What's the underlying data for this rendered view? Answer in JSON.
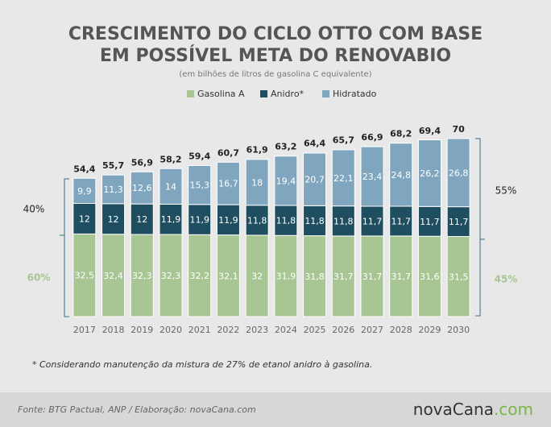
{
  "chart_data": {
    "type": "stacked_bar",
    "title": [
      "CRESCIMENTO DO CICLO OTTO COM BASE",
      "EM POSSÍVEL META DO RENOVABIO"
    ],
    "subtitle": "(em bilhões de litros de gasolina C equivalente)",
    "categories": [
      "2017",
      "2018",
      "2019",
      "2020",
      "2021",
      "2022",
      "2023",
      "2024",
      "2025",
      "2026",
      "2027",
      "2028",
      "2029",
      "2030"
    ],
    "series": [
      {
        "name": "Gasolina A",
        "color": "#a8c594",
        "values": [
          32.5,
          32.4,
          32.3,
          32.3,
          32.2,
          32.1,
          32,
          31.9,
          31.8,
          31.7,
          31.7,
          31.7,
          31.6,
          31.5
        ],
        "value_labels": [
          "32,5",
          "32,4",
          "32,3",
          "32,3",
          "32,2",
          "32,1",
          "32",
          "31,9",
          "31,8",
          "31,7",
          "31,7",
          "31,7",
          "31,6",
          "31,5"
        ]
      },
      {
        "name": "Anidro*",
        "color": "#1f4e60",
        "values": [
          12,
          12,
          12,
          11.9,
          11.9,
          11.9,
          11.8,
          11.8,
          11.8,
          11.8,
          11.7,
          11.7,
          11.7,
          11.7
        ],
        "value_labels": [
          "12",
          "12",
          "12",
          "11,9",
          "11,9",
          "11,9",
          "11,8",
          "11,8",
          "11,8",
          "11,8",
          "11,7",
          "11,7",
          "11,7",
          "11,7"
        ]
      },
      {
        "name": "Hidratado",
        "color": "#7fa6be",
        "values": [
          9.9,
          11.3,
          12.6,
          14,
          15.3,
          16.7,
          18,
          19.4,
          20.7,
          22.1,
          23.4,
          24.8,
          26.2,
          26.8
        ],
        "value_labels": [
          "9,9",
          "11,3",
          "12,6",
          "14",
          "15,3",
          "16,7",
          "18",
          "19,4",
          "20,7",
          "22,1",
          "23,4",
          "24,8",
          "26,2",
          "26,8"
        ]
      }
    ],
    "totals": {
      "values": [
        54.4,
        55.7,
        56.9,
        58.2,
        59.4,
        60.7,
        61.9,
        63.2,
        64.4,
        65.7,
        66.9,
        68.2,
        69.4,
        70
      ],
      "value_labels": [
        "54,4",
        "55,7",
        "56,9",
        "58,2",
        "59,4",
        "60,7",
        "61,9",
        "63,2",
        "64,4",
        "65,7",
        "66,9",
        "68,2",
        "69,4",
        "70"
      ]
    },
    "ylim": [
      0,
      70
    ],
    "left_annotations": [
      "40%",
      "60%"
    ],
    "right_annotations": [
      "55%",
      "45%"
    ],
    "note": "* Considerando manutenção da mistura de 27% de etanol anidro à gasolina.",
    "source": "Fonte: BTG Pactual, ANP / Elaboração: novaCana.com",
    "logo": {
      "main": "novaCana",
      "suffix": ".com"
    }
  }
}
